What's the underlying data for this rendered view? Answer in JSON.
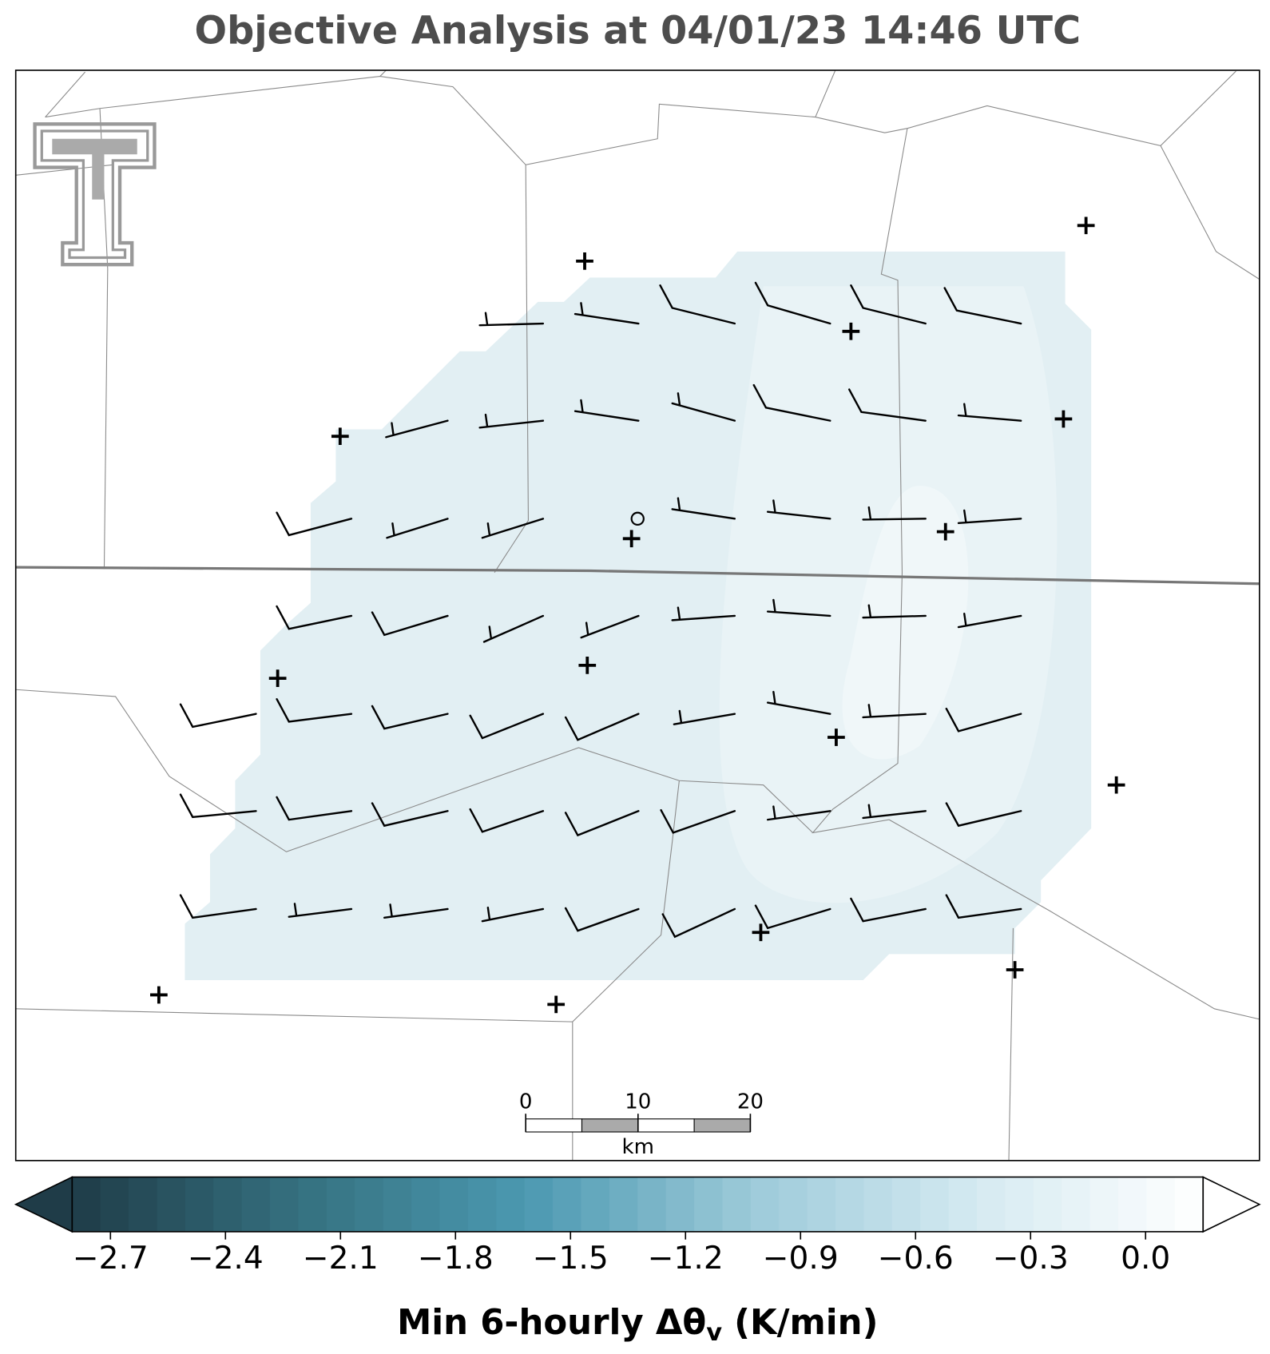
{
  "title": "Objective Analysis at 04/01/23 14:46 UTC",
  "scalebar": {
    "ticks": [
      0,
      10,
      20
    ],
    "unit": "km"
  },
  "colorbar": {
    "lim": [
      -2.8,
      0.15
    ],
    "ticks": [
      {
        "value": -2.7,
        "label": "−2.7"
      },
      {
        "value": -2.4,
        "label": "−2.4"
      },
      {
        "value": -2.1,
        "label": "−2.1"
      },
      {
        "value": -1.8,
        "label": "−1.8"
      },
      {
        "value": -1.5,
        "label": "−1.5"
      },
      {
        "value": -1.2,
        "label": "−1.2"
      },
      {
        "value": -0.9,
        "label": "−0.9"
      },
      {
        "value": -0.6,
        "label": "−0.6"
      },
      {
        "value": -0.3,
        "label": "−0.3"
      },
      {
        "value": 0,
        "label": "0.0"
      }
    ],
    "colors": [
      "#1f3c48",
      "#35707f",
      "#4b98b0",
      "#9ccad9",
      "#d5eaf1",
      "#ffffff"
    ],
    "label": "Min 6-hourly Δθ",
    "label_sub": "v",
    "label_end": " (K/min)"
  }
}
